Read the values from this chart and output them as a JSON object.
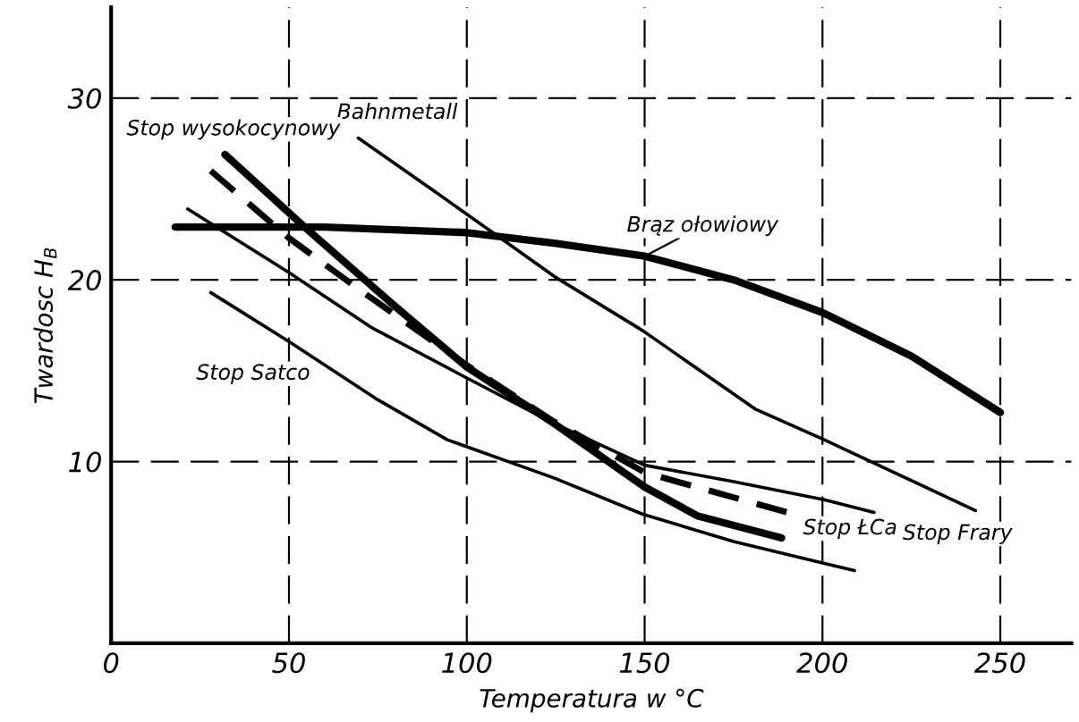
{
  "chart_data": {
    "type": "line",
    "xlabel": "Temperatura w °C",
    "ylabel": "Twardosc H$_{B}$",
    "xlim": [
      0,
      270
    ],
    "ylim": [
      0,
      35
    ],
    "xticks": [
      0,
      50,
      100,
      150,
      200,
      250
    ],
    "yticks": [
      10,
      20,
      30
    ],
    "grid": true,
    "legend": false,
    "marker": "none",
    "series": [
      {
        "name": "Bahnmetall",
        "color": "#000000",
        "line_style": "solid",
        "x": [
          69.5,
          90,
          108,
          124.5,
          149.5,
          181,
          200.5,
          243
        ],
        "values": [
          27.8,
          25.0,
          22.5,
          20.2,
          17.2,
          12.9,
          11.2,
          7.3
        ]
      },
      {
        "name": "Stop wysokocynowy",
        "color": "#000000",
        "line_style": "solid",
        "x": [
          32,
          55,
          79.5,
          100,
          124.5,
          150,
          165,
          188.5
        ],
        "values": [
          26.9,
          22.8,
          18.6,
          15.2,
          12.1,
          8.6,
          7.0,
          5.8
        ]
      },
      {
        "name": "Stop ŁCa",
        "color": "#000000",
        "line_style": "dashed",
        "x": [
          28,
          50,
          69.5,
          100,
          124.5,
          150,
          164.5,
          192
        ],
        "values": [
          26.0,
          22.3,
          19.5,
          15.3,
          12.2,
          9.4,
          8.6,
          7.1
        ]
      },
      {
        "name": "Stop Frary",
        "color": "#000000",
        "line_style": "solid",
        "x": [
          21.5,
          50,
          73,
          100,
          124.5,
          150,
          175,
          200.5,
          214.5
        ],
        "values": [
          23.9,
          20.4,
          17.4,
          14.6,
          12.1,
          9.8,
          8.9,
          7.9,
          7.2
        ]
      },
      {
        "name": "Stop Satco",
        "color": "#000000",
        "line_style": "solid",
        "x": [
          28,
          50,
          75,
          94.5,
          124.5,
          149.5,
          175,
          200.5,
          209
        ],
        "values": [
          19.3,
          16.6,
          13.4,
          11.2,
          9.1,
          7.1,
          5.6,
          4.4,
          4.0
        ]
      },
      {
        "name": "Brąz ołowiowy",
        "color": "#000000",
        "line_style": "solid",
        "x": [
          18,
          60,
          100,
          125,
          150,
          175,
          200,
          225,
          250
        ],
        "values": [
          22.9,
          22.9,
          22.6,
          22.0,
          21.3,
          20.0,
          18.2,
          15.8,
          12.7
        ]
      }
    ]
  }
}
